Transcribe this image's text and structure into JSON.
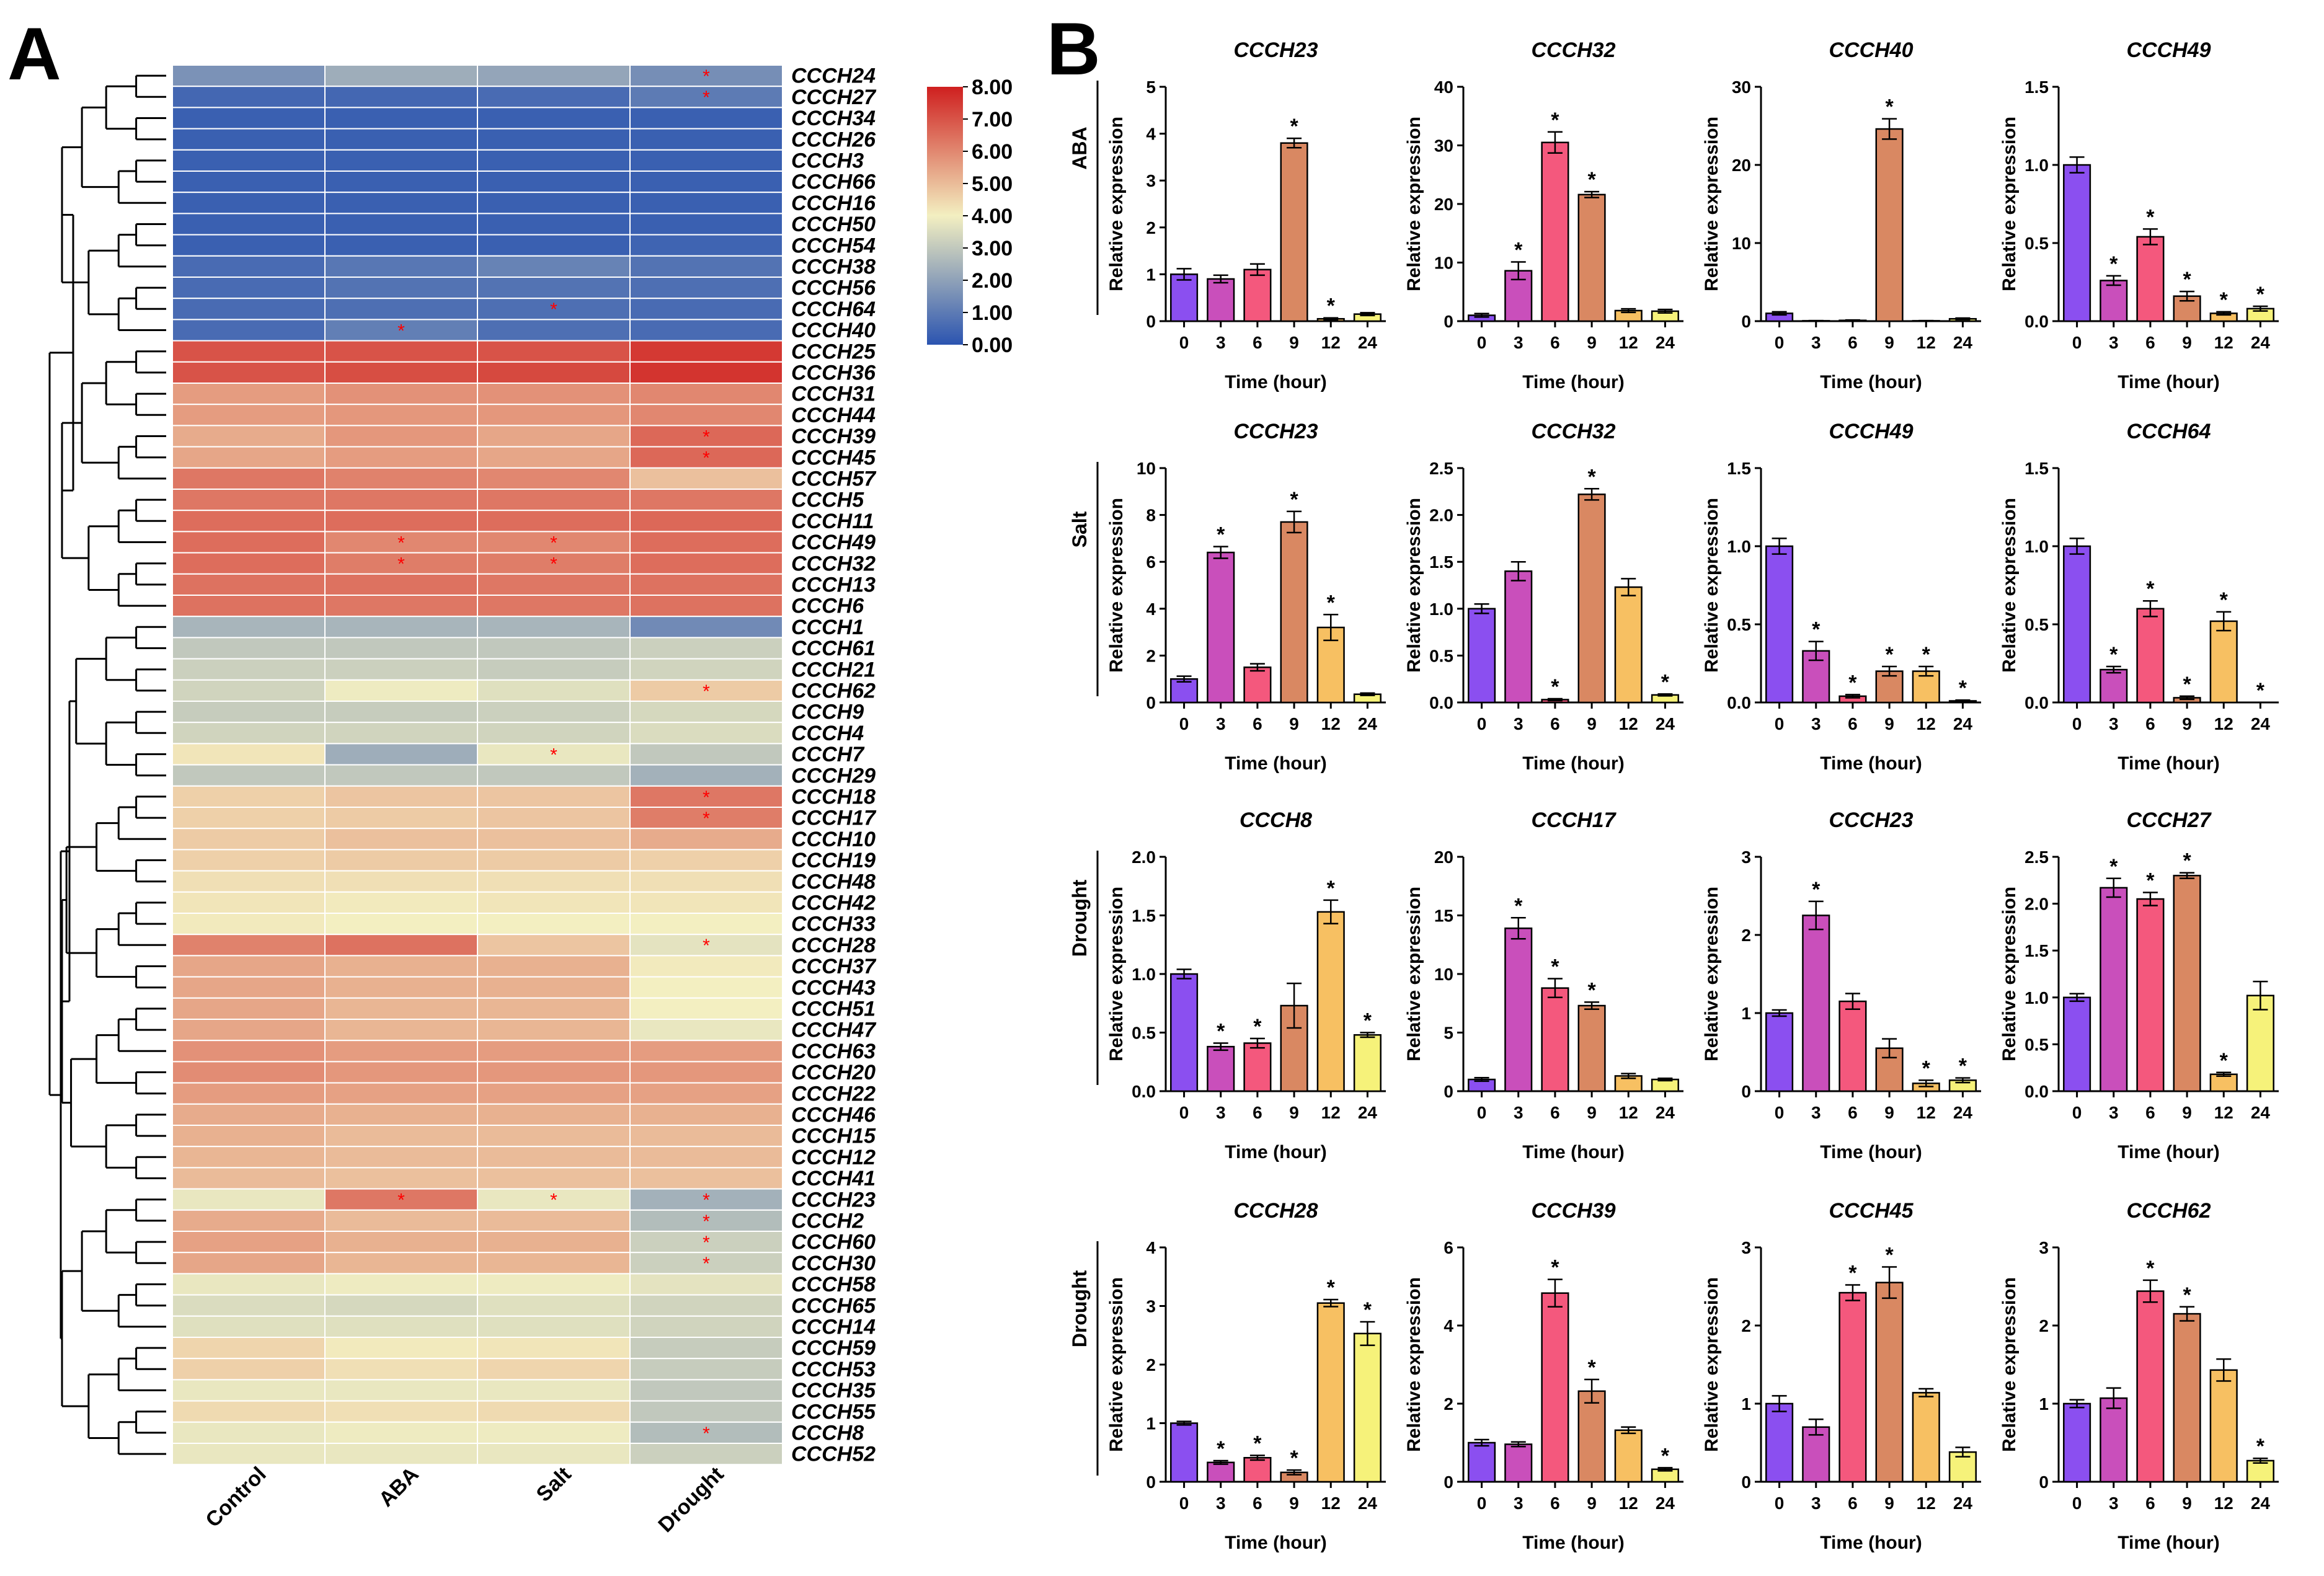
{
  "panel_labels": {
    "a": "A",
    "b": "B"
  },
  "heatmap": {
    "columns": [
      "Control",
      "ABA",
      "Salt",
      "Drought"
    ],
    "colorbar": {
      "ticks": [
        "8.00",
        "7.00",
        "6.00",
        "5.00",
        "4.00",
        "3.00",
        "2.00",
        "1.00",
        "0.00"
      ],
      "min": 0,
      "max": 8,
      "colors": [
        "#2b54b0",
        "#f3efc1",
        "#cf1f1f"
      ]
    },
    "star_color": "#ff0000",
    "genes": [
      "CCCH24",
      "CCCH27",
      "CCCH34",
      "CCCH26",
      "CCCH3",
      "CCCH66",
      "CCCH16",
      "CCCH50",
      "CCCH54",
      "CCCH38",
      "CCCH56",
      "CCCH64",
      "CCCH40",
      "CCCH25",
      "CCCH36",
      "CCCH31",
      "CCCH44",
      "CCCH39",
      "CCCH45",
      "CCCH57",
      "CCCH5",
      "CCCH11",
      "CCCH49",
      "CCCH32",
      "CCCH13",
      "CCCH6",
      "CCCH1",
      "CCCH61",
      "CCCH21",
      "CCCH62",
      "CCCH9",
      "CCCH4",
      "CCCH7",
      "CCCH29",
      "CCCH18",
      "CCCH17",
      "CCCH10",
      "CCCH19",
      "CCCH48",
      "CCCH42",
      "CCCH33",
      "CCCH28",
      "CCCH37",
      "CCCH43",
      "CCCH51",
      "CCCH47",
      "CCCH63",
      "CCCH20",
      "CCCH22",
      "CCCH46",
      "CCCH15",
      "CCCH12",
      "CCCH41",
      "CCCH23",
      "CCCH2",
      "CCCH60",
      "CCCH30",
      "CCCH58",
      "CCCH65",
      "CCCH14",
      "CCCH59",
      "CCCH53",
      "CCCH35",
      "CCCH55",
      "CCCH8",
      "CCCH52"
    ],
    "values": [
      [
        1.6,
        2.3,
        2.1,
        1.5
      ],
      [
        0.5,
        0.5,
        0.6,
        1.0
      ],
      [
        0.3,
        0.3,
        0.3,
        0.3
      ],
      [
        0.3,
        0.3,
        0.3,
        0.3
      ],
      [
        0.3,
        0.3,
        0.3,
        0.3
      ],
      [
        0.3,
        0.3,
        0.3,
        0.3
      ],
      [
        0.3,
        0.3,
        0.3,
        0.3
      ],
      [
        0.3,
        0.3,
        0.3,
        0.3
      ],
      [
        0.3,
        0.3,
        0.3,
        0.4
      ],
      [
        0.6,
        0.9,
        1.2,
        0.8
      ],
      [
        0.6,
        0.8,
        0.8,
        0.7
      ],
      [
        0.6,
        0.7,
        0.7,
        0.6
      ],
      [
        0.6,
        1.1,
        0.7,
        0.6
      ],
      [
        7.0,
        7.0,
        7.0,
        7.5
      ],
      [
        7.0,
        7.1,
        7.2,
        7.6
      ],
      [
        5.6,
        5.8,
        5.8,
        6.0
      ],
      [
        5.6,
        5.7,
        5.7,
        6.0
      ],
      [
        5.3,
        5.7,
        5.4,
        6.6
      ],
      [
        5.4,
        5.6,
        5.4,
        6.6
      ],
      [
        6.3,
        6.1,
        6.0,
        4.9
      ],
      [
        6.3,
        6.3,
        6.3,
        6.3
      ],
      [
        6.5,
        6.5,
        6.5,
        6.6
      ],
      [
        6.5,
        6.0,
        6.0,
        6.5
      ],
      [
        6.5,
        6.2,
        6.2,
        6.5
      ],
      [
        6.4,
        6.4,
        6.3,
        6.4
      ],
      [
        6.4,
        6.3,
        6.3,
        6.4
      ],
      [
        2.5,
        2.5,
        2.5,
        1.4
      ],
      [
        3.0,
        3.0,
        3.0,
        3.2
      ],
      [
        3.2,
        3.2,
        3.1,
        3.3
      ],
      [
        3.3,
        3.9,
        3.6,
        4.7
      ],
      [
        3.1,
        3.1,
        3.2,
        3.4
      ],
      [
        3.3,
        3.3,
        3.3,
        3.5
      ],
      [
        4.2,
        2.3,
        3.8,
        3.0
      ],
      [
        3.0,
        3.0,
        3.0,
        2.4
      ],
      [
        4.6,
        4.8,
        4.8,
        6.3
      ],
      [
        4.6,
        4.7,
        4.8,
        6.2
      ],
      [
        4.7,
        4.9,
        4.9,
        5.3
      ],
      [
        4.6,
        4.7,
        4.7,
        4.6
      ],
      [
        4.3,
        4.3,
        4.3,
        4.3
      ],
      [
        4.2,
        4.1,
        4.2,
        4.2
      ],
      [
        4.1,
        4.0,
        4.0,
        4.0
      ],
      [
        6.1,
        6.4,
        4.8,
        3.7
      ],
      [
        5.4,
        5.2,
        5.2,
        4.1
      ],
      [
        5.4,
        5.2,
        5.2,
        4.0
      ],
      [
        5.4,
        5.1,
        5.1,
        4.0
      ],
      [
        5.4,
        5.1,
        5.1,
        3.8
      ],
      [
        5.8,
        5.6,
        5.6,
        5.6
      ],
      [
        5.9,
        5.7,
        5.7,
        5.7
      ],
      [
        5.6,
        5.5,
        5.5,
        5.5
      ],
      [
        5.3,
        5.2,
        5.2,
        5.2
      ],
      [
        5.2,
        5.0,
        5.0,
        5.0
      ],
      [
        5.1,
        5.0,
        5.0,
        5.0
      ],
      [
        5.0,
        4.9,
        4.9,
        4.9
      ],
      [
        3.8,
        6.3,
        3.8,
        2.4
      ],
      [
        5.3,
        5.0,
        5.0,
        2.7
      ],
      [
        5.5,
        5.2,
        5.2,
        3.2
      ],
      [
        5.4,
        5.1,
        5.1,
        3.2
      ],
      [
        3.8,
        3.9,
        3.9,
        3.7
      ],
      [
        3.5,
        3.4,
        3.6,
        3.3
      ],
      [
        3.6,
        3.6,
        3.6,
        3.3
      ],
      [
        4.5,
        4.1,
        4.2,
        3.1
      ],
      [
        4.6,
        4.3,
        4.5,
        3.1
      ],
      [
        3.8,
        3.8,
        3.8,
        3.0
      ],
      [
        4.4,
        4.3,
        4.4,
        3.0
      ],
      [
        3.8,
        3.9,
        3.9,
        2.7
      ],
      [
        3.8,
        3.8,
        3.8,
        3.2
      ]
    ],
    "stars": [
      [
        0,
        3
      ],
      [
        1,
        3
      ],
      [
        11,
        2
      ],
      [
        12,
        1
      ],
      [
        17,
        3
      ],
      [
        18,
        3
      ],
      [
        22,
        1
      ],
      [
        22,
        2
      ],
      [
        23,
        1
      ],
      [
        23,
        2
      ],
      [
        29,
        3
      ],
      [
        32,
        2
      ],
      [
        34,
        3
      ],
      [
        35,
        3
      ],
      [
        41,
        3
      ],
      [
        53,
        1
      ],
      [
        53,
        2
      ],
      [
        53,
        3
      ],
      [
        54,
        3
      ],
      [
        55,
        3
      ],
      [
        56,
        3
      ],
      [
        64,
        3
      ]
    ]
  },
  "bars": {
    "xlabel": "Time (hour)",
    "ylabel": "Relative expression",
    "star_label": "*",
    "x": [
      "0",
      "3",
      "6",
      "9",
      "12",
      "24"
    ],
    "colors": [
      "#8b4ff0",
      "#c94fbb",
      "#f4587d",
      "#d98862",
      "#f7c062",
      "#f6f27a"
    ],
    "rows": [
      "ABA",
      "Salt",
      "Drought",
      "Drought"
    ],
    "charts": [
      {
        "title": "CCCH23",
        "row": 0,
        "col": 0,
        "ylim": [
          0,
          5
        ],
        "ticks": [
          "0",
          "1",
          "2",
          "3",
          "4",
          "5"
        ],
        "values": [
          1.0,
          0.9,
          1.1,
          3.8,
          0.05,
          0.15
        ],
        "errors": [
          0.12,
          0.08,
          0.12,
          0.1,
          0.02,
          0.03
        ],
        "stars": [
          3,
          4
        ]
      },
      {
        "title": "CCCH32",
        "row": 0,
        "col": 1,
        "ylim": [
          0,
          40
        ],
        "ticks": [
          "0",
          "10",
          "20",
          "30",
          "40"
        ],
        "values": [
          1.0,
          8.6,
          30.5,
          21.6,
          1.8,
          1.7
        ],
        "errors": [
          0.3,
          1.5,
          1.8,
          0.5,
          0.3,
          0.3
        ],
        "stars": [
          1,
          2,
          3
        ]
      },
      {
        "title": "CCCH40",
        "row": 0,
        "col": 2,
        "ylim": [
          0,
          30
        ],
        "ticks": [
          "0",
          "10",
          "20",
          "30"
        ],
        "values": [
          1.0,
          0.05,
          0.1,
          24.6,
          0.05,
          0.3
        ],
        "errors": [
          0.2,
          0.02,
          0.05,
          1.3,
          0.02,
          0.1
        ],
        "stars": [
          3
        ]
      },
      {
        "title": "CCCH49",
        "row": 0,
        "col": 3,
        "ylim": [
          0,
          1.5
        ],
        "ticks": [
          "0.0",
          "0.5",
          "1.0",
          "1.5"
        ],
        "values": [
          1.0,
          0.26,
          0.54,
          0.16,
          0.05,
          0.08
        ],
        "errors": [
          0.05,
          0.03,
          0.05,
          0.03,
          0.01,
          0.015
        ],
        "stars": [
          1,
          2,
          3,
          4,
          5
        ]
      },
      {
        "title": "CCCH23",
        "row": 1,
        "col": 0,
        "ylim": [
          0,
          10
        ],
        "ticks": [
          "0",
          "2",
          "4",
          "6",
          "8",
          "10"
        ],
        "values": [
          1.0,
          6.4,
          1.5,
          7.7,
          3.2,
          0.35
        ],
        "errors": [
          0.12,
          0.25,
          0.15,
          0.45,
          0.55,
          0.05
        ],
        "stars": [
          1,
          3,
          4
        ]
      },
      {
        "title": "CCCH32",
        "row": 1,
        "col": 1,
        "ylim": [
          0,
          2.5
        ],
        "ticks": [
          "0.0",
          "0.5",
          "1.0",
          "1.5",
          "2.0",
          "2.5"
        ],
        "values": [
          1.0,
          1.4,
          0.03,
          2.22,
          1.23,
          0.08
        ],
        "errors": [
          0.05,
          0.1,
          0.01,
          0.06,
          0.09,
          0.01
        ],
        "stars": [
          2,
          3,
          5
        ]
      },
      {
        "title": "CCCH49",
        "row": 1,
        "col": 2,
        "ylim": [
          0,
          1.5
        ],
        "ticks": [
          "0.0",
          "0.5",
          "1.0",
          "1.5"
        ],
        "values": [
          1.0,
          0.33,
          0.04,
          0.2,
          0.2,
          0.01
        ],
        "errors": [
          0.05,
          0.06,
          0.01,
          0.03,
          0.03,
          0.005
        ],
        "stars": [
          1,
          2,
          3,
          4,
          5
        ]
      },
      {
        "title": "CCCH64",
        "row": 1,
        "col": 3,
        "ylim": [
          0,
          1.5
        ],
        "ticks": [
          "0.0",
          "0.5",
          "1.0",
          "1.5"
        ],
        "values": [
          1.0,
          0.21,
          0.6,
          0.03,
          0.52,
          0.0
        ],
        "errors": [
          0.05,
          0.02,
          0.05,
          0.01,
          0.06,
          0.0
        ],
        "stars": [
          1,
          2,
          3,
          4,
          5
        ]
      },
      {
        "title": "CCCH8",
        "row": 2,
        "col": 0,
        "ylim": [
          0,
          2.0
        ],
        "ticks": [
          "0.0",
          "0.5",
          "1.0",
          "1.5",
          "2.0"
        ],
        "values": [
          1.0,
          0.38,
          0.41,
          0.73,
          1.53,
          0.48
        ],
        "errors": [
          0.04,
          0.03,
          0.04,
          0.19,
          0.1,
          0.02
        ],
        "stars": [
          1,
          2,
          4,
          5
        ]
      },
      {
        "title": "CCCH17",
        "row": 2,
        "col": 1,
        "ylim": [
          0,
          20
        ],
        "ticks": [
          "0",
          "5",
          "10",
          "15",
          "20"
        ],
        "values": [
          1.0,
          13.9,
          8.8,
          7.3,
          1.3,
          1.0
        ],
        "errors": [
          0.15,
          0.9,
          0.8,
          0.3,
          0.2,
          0.1
        ],
        "stars": [
          1,
          2,
          3
        ]
      },
      {
        "title": "CCCH23",
        "row": 2,
        "col": 2,
        "ylim": [
          0,
          3
        ],
        "ticks": [
          "0",
          "1",
          "2",
          "3"
        ],
        "values": [
          1.0,
          2.25,
          1.15,
          0.55,
          0.1,
          0.14
        ],
        "errors": [
          0.04,
          0.18,
          0.1,
          0.12,
          0.04,
          0.03
        ],
        "stars": [
          1,
          4,
          5
        ]
      },
      {
        "title": "CCCH27",
        "row": 2,
        "col": 3,
        "ylim": [
          0,
          2.5
        ],
        "ticks": [
          "0.0",
          "0.5",
          "1.0",
          "1.5",
          "2.0",
          "2.5"
        ],
        "values": [
          1.0,
          2.17,
          2.05,
          2.3,
          0.18,
          1.02
        ],
        "errors": [
          0.04,
          0.1,
          0.07,
          0.03,
          0.02,
          0.15
        ],
        "stars": [
          1,
          2,
          3,
          4
        ]
      },
      {
        "title": "CCCH28",
        "row": 3,
        "col": 0,
        "ylim": [
          0,
          4
        ],
        "ticks": [
          "0",
          "1",
          "2",
          "3",
          "4"
        ],
        "values": [
          1.0,
          0.33,
          0.41,
          0.16,
          3.05,
          2.53
        ],
        "errors": [
          0.03,
          0.03,
          0.04,
          0.04,
          0.06,
          0.2
        ],
        "stars": [
          1,
          2,
          3,
          4,
          5
        ]
      },
      {
        "title": "CCCH39",
        "row": 3,
        "col": 1,
        "ylim": [
          0,
          6
        ],
        "ticks": [
          "0",
          "2",
          "4",
          "6"
        ],
        "values": [
          1.0,
          0.96,
          4.83,
          2.32,
          1.32,
          0.32
        ],
        "errors": [
          0.08,
          0.06,
          0.35,
          0.3,
          0.08,
          0.04
        ],
        "stars": [
          2,
          3,
          5
        ]
      },
      {
        "title": "CCCH45",
        "row": 3,
        "col": 2,
        "ylim": [
          0,
          3
        ],
        "ticks": [
          "0",
          "1",
          "2",
          "3"
        ],
        "values": [
          1.0,
          0.7,
          2.42,
          2.55,
          1.14,
          0.38
        ],
        "errors": [
          0.1,
          0.1,
          0.1,
          0.2,
          0.05,
          0.06
        ],
        "stars": [
          2,
          3
        ]
      },
      {
        "title": "CCCH62",
        "row": 3,
        "col": 3,
        "ylim": [
          0,
          3
        ],
        "ticks": [
          "0",
          "1",
          "2",
          "3"
        ],
        "values": [
          1.0,
          1.07,
          2.44,
          2.15,
          1.43,
          0.27
        ],
        "errors": [
          0.05,
          0.13,
          0.14,
          0.09,
          0.14,
          0.03
        ],
        "stars": [
          2,
          3,
          5
        ]
      }
    ]
  },
  "chart_data": [
    {
      "type": "heatmap",
      "title": "",
      "x": [
        "Control",
        "ABA",
        "Salt",
        "Drought"
      ],
      "y_source": "heatmap.genes",
      "values_source": "heatmap.values",
      "colorbar_range": [
        0,
        8
      ]
    },
    {
      "type": "bar",
      "xlabel": "Time (hour)",
      "ylabel": "Relative expression",
      "categories": [
        "0",
        "3",
        "6",
        "9",
        "12",
        "24"
      ],
      "series_source": "bars.charts"
    }
  ]
}
